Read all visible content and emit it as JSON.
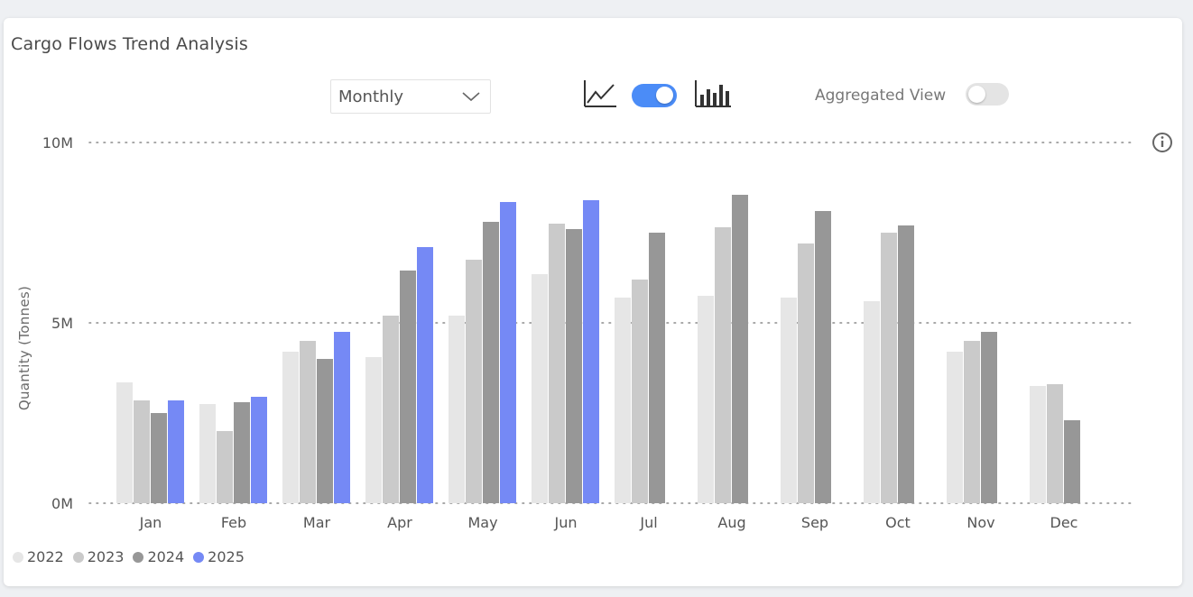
{
  "card": {
    "title": "Cargo Flows Trend Analysis"
  },
  "controls": {
    "period_dropdown": {
      "selected": "Monthly",
      "icon": "chevron-down-icon"
    },
    "line_chart_icon": "line-chart-icon",
    "bar_chart_icon": "bar-chart-icon",
    "chart_type_toggle": {
      "on": true,
      "color": "#4b8cf7"
    },
    "aggregated_view": {
      "label": "Aggregated View",
      "on": false
    },
    "info_icon": "info-icon"
  },
  "chart_data": {
    "type": "bar",
    "title": "",
    "xlabel": "",
    "ylabel": "Quantity (Tonnes)",
    "ylim": [
      0,
      10
    ],
    "y_ticks": [
      "0M",
      "5M",
      "10M"
    ],
    "grid": true,
    "legend_position": "bottom-left",
    "categories": [
      "Jan",
      "Feb",
      "Mar",
      "Apr",
      "May",
      "Jun",
      "Jul",
      "Aug",
      "Sep",
      "Oct",
      "Nov",
      "Dec"
    ],
    "series": [
      {
        "name": "2022",
        "color": "#e6e6e6",
        "values": [
          3.35,
          2.75,
          4.2,
          4.05,
          5.2,
          6.35,
          5.7,
          5.75,
          5.7,
          5.6,
          4.2,
          3.25
        ]
      },
      {
        "name": "2023",
        "color": "#cacaca",
        "values": [
          2.85,
          2.0,
          4.5,
          5.2,
          6.75,
          7.75,
          6.2,
          7.65,
          7.2,
          7.5,
          4.5,
          3.3
        ]
      },
      {
        "name": "2024",
        "color": "#979797",
        "values": [
          2.5,
          2.8,
          4.0,
          6.45,
          7.8,
          7.6,
          7.5,
          8.55,
          8.1,
          7.7,
          4.75,
          2.3
        ]
      },
      {
        "name": "2025",
        "color": "#7589f5",
        "values": [
          2.85,
          2.95,
          4.75,
          7.1,
          8.35,
          8.4,
          null,
          null,
          null,
          null,
          null,
          null
        ]
      }
    ]
  }
}
